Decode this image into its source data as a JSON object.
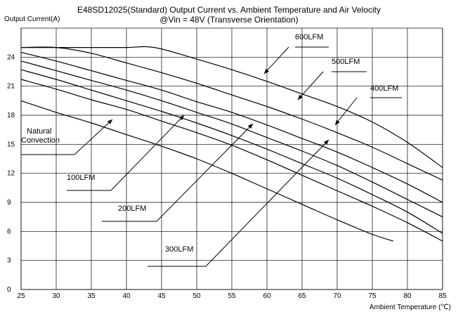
{
  "chart_data": {
    "type": "line",
    "title_line1": "E48SD12025(Standard) Output Current vs. Ambient Temperature and Air Velocity",
    "title_line2": "@Vin = 48V (Transverse Orientation)",
    "ylabel": "Output Current(A)",
    "xlabel": "Ambient Temperature (℃)",
    "xlim": [
      25,
      85
    ],
    "ylim": [
      0,
      27
    ],
    "xticks": [
      25,
      30,
      35,
      40,
      45,
      50,
      55,
      60,
      65,
      70,
      75,
      80,
      85
    ],
    "yticks": [
      0,
      3,
      6,
      9,
      12,
      15,
      18,
      21,
      24
    ],
    "grid": true,
    "series": [
      {
        "name": "Natural Convection",
        "label_lines": [
          "Natural",
          "Convection"
        ],
        "x": [
          25,
          30,
          35,
          40,
          45,
          50,
          55,
          60,
          65,
          70,
          75,
          78
        ],
        "y": [
          19.5,
          18.3,
          17.2,
          16.0,
          14.8,
          13.5,
          12.0,
          10.4,
          8.8,
          7.2,
          5.7,
          5.0
        ]
      },
      {
        "name": "100LFM",
        "label_lines": [
          "100LFM"
        ],
        "x": [
          25,
          30,
          35,
          40,
          45,
          50,
          55,
          60,
          65,
          70,
          75,
          80,
          85
        ],
        "y": [
          21.7,
          20.7,
          19.6,
          18.6,
          17.4,
          16.2,
          14.9,
          13.4,
          11.8,
          10.2,
          8.6,
          6.9,
          5.0
        ]
      },
      {
        "name": "200LFM",
        "label_lines": [
          "200LFM"
        ],
        "x": [
          25,
          30,
          35,
          40,
          45,
          50,
          55,
          60,
          65,
          70,
          75,
          80,
          85
        ],
        "y": [
          22.7,
          21.7,
          20.6,
          19.5,
          18.4,
          17.2,
          15.9,
          14.5,
          13.0,
          11.5,
          9.8,
          8.0,
          5.8
        ]
      },
      {
        "name": "300LFM",
        "label_lines": [
          "300LFM"
        ],
        "x": [
          25,
          30,
          35,
          40,
          45,
          50,
          55,
          60,
          65,
          70,
          75,
          80,
          85
        ],
        "y": [
          23.6,
          22.6,
          21.6,
          20.6,
          19.5,
          18.3,
          17.1,
          15.7,
          14.3,
          12.8,
          11.1,
          9.3,
          7.5
        ]
      },
      {
        "name": "400LFM",
        "label_lines": [
          "400LFM"
        ],
        "x": [
          25,
          30,
          35,
          40,
          45,
          50,
          55,
          60,
          65,
          70,
          75,
          80,
          85
        ],
        "y": [
          24.5,
          23.6,
          22.6,
          21.6,
          20.6,
          19.4,
          18.3,
          17.0,
          15.6,
          14.2,
          12.6,
          10.9,
          9.0
        ]
      },
      {
        "name": "500LFM",
        "label_lines": [
          "500LFM"
        ],
        "x": [
          25,
          30,
          35,
          40,
          45,
          50,
          55,
          60,
          65,
          70,
          75,
          80,
          85
        ],
        "y": [
          25.0,
          25.0,
          24.4,
          23.4,
          22.4,
          21.3,
          20.1,
          18.9,
          17.6,
          16.2,
          14.7,
          13.0,
          11.3
        ]
      },
      {
        "name": "600LFM",
        "label_lines": [
          "600LFM"
        ],
        "x": [
          25,
          30,
          35,
          40,
          44,
          50,
          55,
          60,
          65,
          70,
          75,
          80,
          85
        ],
        "y": [
          25.0,
          25.0,
          25.0,
          25.0,
          25.0,
          23.8,
          22.7,
          21.5,
          20.2,
          18.9,
          17.3,
          15.2,
          12.6
        ]
      }
    ]
  }
}
